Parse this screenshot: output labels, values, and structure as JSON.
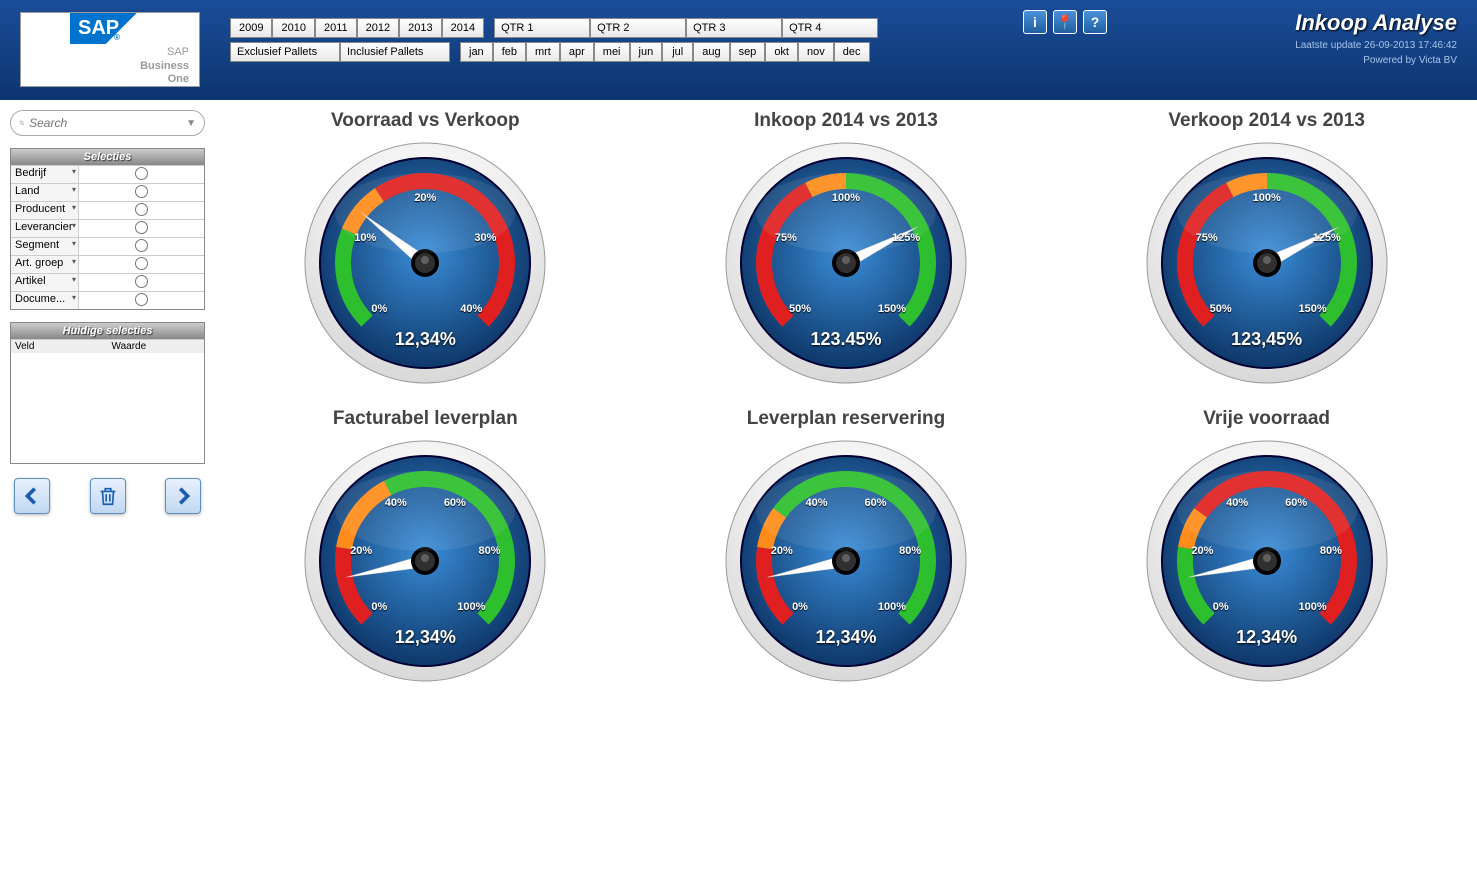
{
  "header": {
    "logo_text": "SAP",
    "logo_sub1": "SAP",
    "logo_sub2": "Business",
    "logo_sub3": "One",
    "page_title": "Inkoop Analyse",
    "update_label": "Laatste update",
    "update_value": "26-09-2013 17:46:42",
    "powered": "Powered by Victa BV",
    "years": [
      "2009",
      "2010",
      "2011",
      "2012",
      "2013",
      "2014"
    ],
    "pallet_modes": [
      "Exclusief Pallets",
      "Inclusief Pallets"
    ],
    "quarters": [
      "QTR 1",
      "QTR 2",
      "QTR 3",
      "QTR 4"
    ],
    "months": [
      "jan",
      "feb",
      "mrt",
      "apr",
      "mei",
      "jun",
      "jul",
      "aug",
      "sep",
      "okt",
      "nov",
      "dec"
    ],
    "icons": [
      "i",
      "📍",
      "?"
    ]
  },
  "sidebar": {
    "search_placeholder": "Search",
    "selecties_title": "Selecties",
    "selecties": [
      "Bedrijf",
      "Land",
      "Producent",
      "Leverancier",
      "Segment",
      "Art. groep",
      "Artikel",
      "Docume..."
    ],
    "huidige_title": "Huidige selecties",
    "col_veld": "Veld",
    "col_waarde": "Waarde"
  },
  "gauges": [
    {
      "title": "Voorraad vs Verkoop",
      "value_text": "12,34%",
      "min": 0,
      "max": 40,
      "value": 12.34,
      "ticks": [
        {
          "v": 0,
          "l": "0%"
        },
        {
          "v": 10,
          "l": "10%"
        },
        {
          "v": 20,
          "l": "20%"
        },
        {
          "v": 30,
          "l": "30%"
        },
        {
          "v": 40,
          "l": "40%"
        }
      ],
      "segments": [
        {
          "from": 0,
          "to": 10,
          "color": "#2dbf2d"
        },
        {
          "from": 10,
          "to": 15,
          "color": "#ff8c1a"
        },
        {
          "from": 15,
          "to": 40,
          "color": "#e02020"
        }
      ]
    },
    {
      "title": "Inkoop 2014 vs 2013",
      "value_text": "123.45%",
      "min": 50,
      "max": 150,
      "value": 123.45,
      "ticks": [
        {
          "v": 50,
          "l": "50%"
        },
        {
          "v": 75,
          "l": "75%"
        },
        {
          "v": 100,
          "l": "100%"
        },
        {
          "v": 125,
          "l": "125%"
        },
        {
          "v": 150,
          "l": "150%"
        }
      ],
      "segments": [
        {
          "from": 50,
          "to": 90,
          "color": "#e02020"
        },
        {
          "from": 90,
          "to": 100,
          "color": "#ff8c1a"
        },
        {
          "from": 100,
          "to": 150,
          "color": "#2dbf2d"
        }
      ]
    },
    {
      "title": "Verkoop 2014 vs 2013",
      "value_text": "123,45%",
      "min": 50,
      "max": 150,
      "value": 123.45,
      "ticks": [
        {
          "v": 50,
          "l": "50%"
        },
        {
          "v": 75,
          "l": "75%"
        },
        {
          "v": 100,
          "l": "100%"
        },
        {
          "v": 125,
          "l": "125%"
        },
        {
          "v": 150,
          "l": "150%"
        }
      ],
      "segments": [
        {
          "from": 50,
          "to": 90,
          "color": "#e02020"
        },
        {
          "from": 90,
          "to": 100,
          "color": "#ff8c1a"
        },
        {
          "from": 100,
          "to": 150,
          "color": "#2dbf2d"
        }
      ]
    },
    {
      "title": "Facturabel leverplan",
      "value_text": "12,34%",
      "min": 0,
      "max": 100,
      "value": 12.34,
      "ticks": [
        {
          "v": 0,
          "l": "0%"
        },
        {
          "v": 20,
          "l": "20%"
        },
        {
          "v": 40,
          "l": "40%"
        },
        {
          "v": 60,
          "l": "60%"
        },
        {
          "v": 80,
          "l": "80%"
        },
        {
          "v": 100,
          "l": "100%"
        }
      ],
      "segments": [
        {
          "from": 0,
          "to": 20,
          "color": "#e02020"
        },
        {
          "from": 20,
          "to": 40,
          "color": "#ff8c1a"
        },
        {
          "from": 40,
          "to": 100,
          "color": "#2dbf2d"
        }
      ]
    },
    {
      "title": "Leverplan reservering",
      "value_text": "12,34%",
      "min": 0,
      "max": 100,
      "value": 12.34,
      "ticks": [
        {
          "v": 0,
          "l": "0%"
        },
        {
          "v": 20,
          "l": "20%"
        },
        {
          "v": 40,
          "l": "40%"
        },
        {
          "v": 60,
          "l": "60%"
        },
        {
          "v": 80,
          "l": "80%"
        },
        {
          "v": 100,
          "l": "100%"
        }
      ],
      "segments": [
        {
          "from": 0,
          "to": 20,
          "color": "#e02020"
        },
        {
          "from": 20,
          "to": 30,
          "color": "#ff8c1a"
        },
        {
          "from": 30,
          "to": 100,
          "color": "#2dbf2d"
        }
      ]
    },
    {
      "title": "Vrije voorraad",
      "value_text": "12,34%",
      "min": 0,
      "max": 100,
      "value": 12.34,
      "ticks": [
        {
          "v": 0,
          "l": "0%"
        },
        {
          "v": 20,
          "l": "20%"
        },
        {
          "v": 40,
          "l": "40%"
        },
        {
          "v": 60,
          "l": "60%"
        },
        {
          "v": 80,
          "l": "80%"
        },
        {
          "v": 100,
          "l": "100%"
        }
      ],
      "segments": [
        {
          "from": 0,
          "to": 20,
          "color": "#2dbf2d"
        },
        {
          "from": 20,
          "to": 30,
          "color": "#ff8c1a"
        },
        {
          "from": 30,
          "to": 100,
          "color": "#e02020"
        }
      ]
    }
  ],
  "gauge_style": {
    "bezel_outer": "#d8d8d8",
    "bezel_inner": "#f0f0f0",
    "face_grad_inner": "#3a8dd8",
    "face_grad_outer": "#0a3060",
    "needle_color": "#ffffff",
    "hub_color": "#202020",
    "start_angle_deg": 225,
    "end_angle_deg": -45
  }
}
